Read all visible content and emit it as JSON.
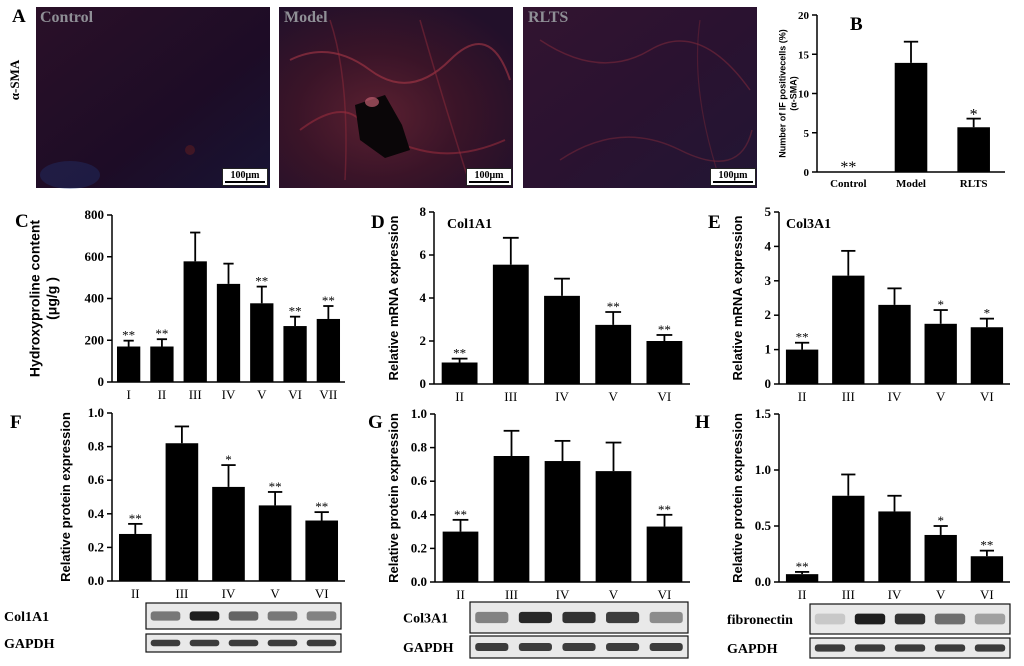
{
  "figure": {
    "row_label": "α-SMA",
    "micrographs": [
      {
        "letter": "A",
        "label": "Control",
        "scale": "100μm"
      },
      {
        "label": "Model",
        "scale": "100μm"
      },
      {
        "label": "RLTS",
        "scale": "100μm"
      }
    ]
  },
  "blots": {
    "F": {
      "band": "Col1A1",
      "loading": "GAPDH"
    },
    "G": {
      "band": "Col3A1",
      "loading": "GAPDH"
    },
    "H": {
      "band": "fibronectin",
      "loading": "GAPDH"
    }
  },
  "chart_data": [
    {
      "panel": "B",
      "type": "bar",
      "ylabel": "Number of IF positivecells (%)\n(α-SMA)",
      "ylim": [
        0,
        20
      ],
      "yticks": [
        "0",
        "5",
        "10",
        "15",
        "20"
      ],
      "categories": [
        "Control",
        "Model",
        "RLTS"
      ],
      "values": [
        0,
        13.9,
        5.7
      ],
      "errors": [
        0,
        2.7,
        1.1
      ],
      "annotations": [
        "**",
        "",
        "*"
      ]
    },
    {
      "panel": "C",
      "type": "bar",
      "ylabel": "Hydroxyproline content\n(μg/g )",
      "ylim": [
        0,
        800
      ],
      "yticks": [
        "0",
        "200",
        "400",
        "600",
        "800"
      ],
      "categories": [
        "I",
        "II",
        "III",
        "IV",
        "V",
        "VI",
        "VII"
      ],
      "values": [
        170,
        170,
        578,
        470,
        377,
        268,
        302
      ],
      "errors": [
        28,
        35,
        138,
        97,
        80,
        45,
        62
      ],
      "annotations": [
        "**",
        "**",
        "",
        "",
        "**",
        "**",
        "**"
      ]
    },
    {
      "panel": "D",
      "type": "bar",
      "title": "Col1A1",
      "ylabel": "Relative mRNA expression",
      "ylim": [
        0,
        8
      ],
      "yticks": [
        "0",
        "2",
        "4",
        "6",
        "8"
      ],
      "categories": [
        "II",
        "III",
        "IV",
        "V",
        "VI"
      ],
      "values": [
        1.0,
        5.55,
        4.1,
        2.75,
        2.0
      ],
      "errors": [
        0.18,
        1.25,
        0.8,
        0.6,
        0.28
      ],
      "annotations": [
        "**",
        "",
        "",
        "**",
        "**"
      ]
    },
    {
      "panel": "E",
      "type": "bar",
      "title": "Col3A1",
      "ylabel": "Relative mRNA expression",
      "ylim": [
        0,
        5
      ],
      "yticks": [
        "0",
        "1",
        "2",
        "3",
        "4",
        "5"
      ],
      "categories": [
        "II",
        "III",
        "IV",
        "V",
        "VI"
      ],
      "values": [
        1.0,
        3.15,
        2.3,
        1.75,
        1.65
      ],
      "errors": [
        0.2,
        0.72,
        0.48,
        0.4,
        0.25
      ],
      "annotations": [
        "**",
        "",
        "",
        "*",
        "*"
      ]
    },
    {
      "panel": "F",
      "type": "bar",
      "ylabel": "Relative protein expression",
      "ylim": [
        0,
        1.0
      ],
      "yticks": [
        "0.0",
        "0.2",
        "0.4",
        "0.6",
        "0.8",
        "1.0"
      ],
      "categories": [
        "II",
        "III",
        "IV",
        "V",
        "VI"
      ],
      "values": [
        0.28,
        0.82,
        0.56,
        0.45,
        0.36
      ],
      "errors": [
        0.06,
        0.1,
        0.13,
        0.08,
        0.05
      ],
      "annotations": [
        "**",
        "",
        "*",
        "**",
        "**"
      ]
    },
    {
      "panel": "G",
      "type": "bar",
      "ylabel": "Relative protein expression",
      "ylim": [
        0,
        1.0
      ],
      "yticks": [
        "0.0",
        "0.2",
        "0.4",
        "0.6",
        "0.8",
        "1.0"
      ],
      "categories": [
        "II",
        "III",
        "IV",
        "V",
        "VI"
      ],
      "values": [
        0.3,
        0.75,
        0.72,
        0.66,
        0.33
      ],
      "errors": [
        0.07,
        0.15,
        0.12,
        0.17,
        0.07
      ],
      "annotations": [
        "**",
        "",
        "",
        "",
        "**"
      ]
    },
    {
      "panel": "H",
      "type": "bar",
      "ylabel": "Relative protein expression",
      "ylim": [
        0,
        1.5
      ],
      "yticks": [
        "0.0",
        "0.5",
        "1.0",
        "1.5"
      ],
      "categories": [
        "II",
        "III",
        "IV",
        "V",
        "VI"
      ],
      "values": [
        0.07,
        0.77,
        0.63,
        0.42,
        0.23
      ],
      "errors": [
        0.02,
        0.19,
        0.14,
        0.08,
        0.05
      ],
      "annotations": [
        "**",
        "",
        "",
        "*",
        "**"
      ]
    }
  ]
}
